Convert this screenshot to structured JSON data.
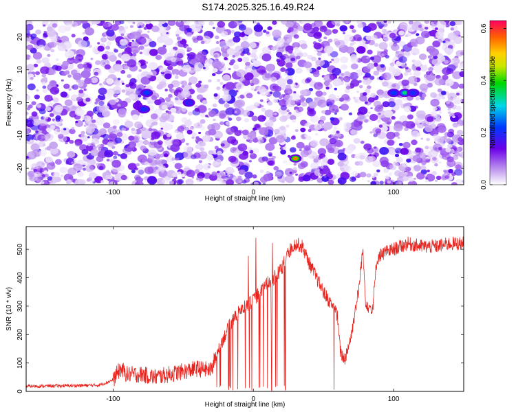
{
  "title": "S174.2025.325.16.49.R24",
  "chart_data": [
    {
      "type": "heatmap",
      "xlabel": "Height of straight line (km)",
      "ylabel": "Frequency (Hz)",
      "xlim": [
        -162,
        150
      ],
      "ylim": [
        -25,
        25
      ],
      "xticks": [
        -100,
        0,
        100
      ],
      "yticks": [
        -20,
        -10,
        0,
        10,
        20
      ],
      "colorbar": {
        "label": "Normalized spectral amplitude",
        "range": [
          0,
          0.63
        ],
        "ticks": [
          0.0,
          0.2,
          0.4,
          0.6
        ]
      },
      "hotspots": [
        {
          "x": -76,
          "y": 3,
          "amplitude": 0.22
        },
        {
          "x": -78,
          "y": -2,
          "amplitude": 0.2
        },
        {
          "x": -46,
          "y": 0,
          "amplitude": 0.17
        },
        {
          "x": 30,
          "y": -17,
          "amplitude": 0.55
        },
        {
          "x": 108,
          "y": 3,
          "amplitude": 0.35
        },
        {
          "x": 100,
          "y": 3,
          "amplitude": 0.22
        },
        {
          "x": 114,
          "y": 3,
          "amplitude": 0.2
        }
      ]
    },
    {
      "type": "line",
      "xlabel": "Height of straight line (km)",
      "ylabel": "SNR (10 * v/v)",
      "xlim": [
        -162,
        150
      ],
      "ylim": [
        0,
        580
      ],
      "xticks": [
        -100,
        0,
        100
      ],
      "yticks": [
        0,
        100,
        200,
        300,
        400,
        500
      ],
      "series": [
        {
          "name": "SNR",
          "color": "#e8221c",
          "x": [
            -162,
            -130,
            -110,
            -100,
            -95,
            -90,
            -80,
            -70,
            -60,
            -50,
            -40,
            -30,
            -25,
            -20,
            -15,
            -10,
            -5,
            0,
            5,
            10,
            15,
            20,
            25,
            30,
            35,
            40,
            45,
            50,
            55,
            58,
            60,
            62,
            65,
            70,
            72,
            75,
            78,
            80,
            82,
            85,
            88,
            90,
            100,
            110,
            120,
            130,
            140,
            150
          ],
          "values": [
            18,
            20,
            22,
            40,
            80,
            60,
            60,
            50,
            60,
            70,
            80,
            75,
            150,
            200,
            250,
            280,
            300,
            320,
            350,
            380,
            400,
            430,
            490,
            520,
            510,
            450,
            400,
            350,
            310,
            300,
            260,
            140,
            110,
            200,
            270,
            350,
            500,
            320,
            300,
            290,
            460,
            480,
            500,
            520,
            510,
            510,
            520,
            520
          ]
        }
      ]
    }
  ]
}
